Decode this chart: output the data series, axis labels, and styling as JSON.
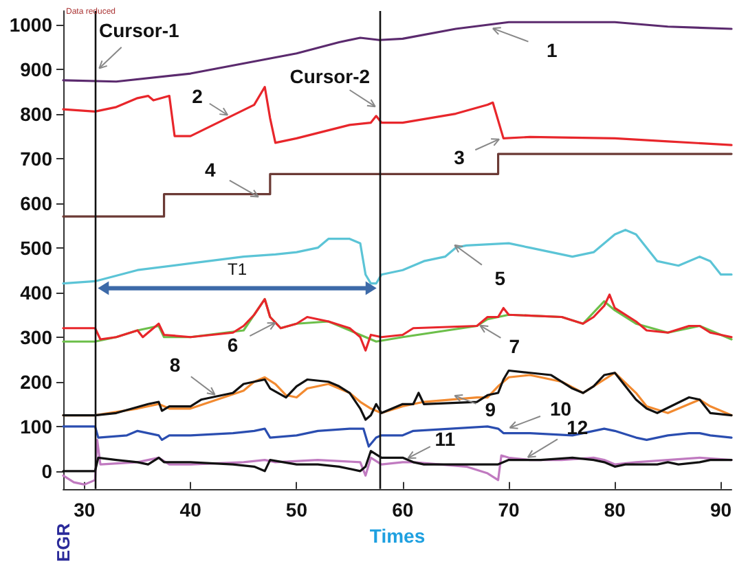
{
  "chart_data": {
    "type": "line",
    "xlabel": "Times",
    "ylabel": "EGR",
    "xlim": [
      28,
      91
    ],
    "ylim": [
      -40,
      1030
    ],
    "xticks": [
      30,
      40,
      50,
      60,
      70,
      80,
      90
    ],
    "yticks": [
      0,
      100,
      200,
      300,
      400,
      500,
      600,
      700,
      800,
      900,
      1000
    ],
    "grid": false,
    "marker": "none",
    "line_style": "solid",
    "series": [
      {
        "color": "#5b2a6e",
        "x": [
          28,
          33,
          40,
          50,
          54,
          56,
          57.8,
          60,
          65,
          70,
          80,
          85,
          91
        ],
        "values": [
          875,
          872,
          890,
          935,
          960,
          970,
          965,
          968,
          990,
          1005,
          1005,
          995,
          990
        ]
      },
      {
        "color": "#e8262b",
        "x": [
          28,
          31,
          33,
          35,
          36,
          36.5,
          38,
          38.5,
          40,
          46,
          47,
          47.5,
          48,
          50,
          55,
          57,
          57.5,
          58,
          60,
          65,
          68,
          68.5,
          69.5,
          72,
          80,
          85,
          91
        ],
        "values": [
          810,
          805,
          815,
          835,
          840,
          830,
          840,
          750,
          750,
          820,
          860,
          790,
          735,
          745,
          775,
          780,
          795,
          780,
          780,
          800,
          820,
          825,
          745,
          748,
          745,
          738,
          730
        ]
      },
      {
        "type": "step",
        "color": "#6b3a35",
        "x": [
          28,
          37.5,
          47.5,
          69,
          91
        ],
        "values": [
          570,
          620,
          665,
          710,
          710
        ]
      },
      {
        "color": "#5bc4d6",
        "x": [
          28,
          31,
          35,
          40,
          45,
          48,
          50,
          52,
          53,
          55,
          56,
          56.5,
          57,
          57.5,
          58,
          60,
          62,
          64,
          65,
          66,
          70,
          72,
          74,
          76,
          78,
          80,
          81,
          82,
          83,
          84,
          86,
          88,
          89,
          90,
          91
        ],
        "values": [
          420,
          425,
          450,
          465,
          480,
          485,
          490,
          500,
          520,
          520,
          510,
          440,
          420,
          420,
          440,
          450,
          470,
          480,
          500,
          505,
          510,
          500,
          490,
          480,
          490,
          530,
          540,
          530,
          500,
          470,
          460,
          480,
          470,
          440,
          440
        ]
      },
      {
        "color": "#6cbf4a",
        "x": [
          28,
          31,
          33,
          35,
          37,
          37.5,
          40,
          45,
          47,
          47.5,
          48.5,
          50,
          53,
          56,
          57.5,
          60,
          67,
          68,
          70,
          75,
          77,
          79,
          80,
          82,
          85,
          88,
          91
        ],
        "values": [
          290,
          290,
          300,
          315,
          325,
          300,
          300,
          315,
          385,
          345,
          320,
          330,
          335,
          305,
          290,
          300,
          325,
          340,
          350,
          345,
          330,
          380,
          360,
          330,
          310,
          325,
          295
        ]
      },
      {
        "color": "#e8262b",
        "x": [
          28,
          31,
          31.5,
          33,
          35,
          35.5,
          37,
          37.5,
          40,
          44,
          45,
          46,
          47,
          47.5,
          48.5,
          50,
          51,
          53,
          55,
          56,
          56.5,
          57,
          58,
          60,
          61,
          67,
          68,
          69,
          69.5,
          70,
          75,
          77,
          78,
          79,
          79.5,
          80,
          82,
          83,
          85,
          87,
          88,
          89,
          91
        ],
        "values": [
          320,
          320,
          295,
          300,
          315,
          300,
          330,
          305,
          300,
          310,
          325,
          350,
          385,
          345,
          320,
          330,
          345,
          335,
          320,
          300,
          270,
          305,
          300,
          305,
          320,
          325,
          345,
          345,
          365,
          350,
          345,
          330,
          345,
          370,
          395,
          365,
          335,
          315,
          310,
          325,
          325,
          310,
          300
        ]
      },
      {
        "color": "#f28a30",
        "x": [
          28,
          31,
          35,
          37,
          38,
          40,
          45,
          46,
          47,
          48,
          49,
          50,
          51,
          53,
          55,
          56,
          57,
          58,
          60,
          62,
          67,
          68,
          69,
          70,
          72,
          75,
          77,
          78,
          80,
          82,
          83,
          85,
          87,
          88,
          89,
          91
        ],
        "values": [
          125,
          125,
          140,
          150,
          140,
          140,
          180,
          200,
          210,
          195,
          170,
          165,
          185,
          195,
          175,
          155,
          140,
          130,
          145,
          155,
          165,
          165,
          190,
          210,
          215,
          200,
          175,
          190,
          220,
          175,
          145,
          130,
          150,
          160,
          145,
          125
        ]
      },
      {
        "color": "#111111",
        "x": [
          28,
          31,
          33,
          36,
          37,
          37.3,
          38,
          40,
          41,
          43,
          44,
          45,
          47,
          47.5,
          49,
          50,
          51,
          53,
          54,
          55,
          56,
          56.5,
          57,
          57.5,
          58,
          60,
          61,
          61.5,
          62,
          67,
          68,
          69,
          69.5,
          70,
          72,
          74,
          75,
          76,
          77,
          78,
          79,
          80,
          81,
          82,
          83,
          84,
          87,
          88,
          89,
          91
        ],
        "values": [
          125,
          125,
          130,
          150,
          155,
          135,
          145,
          145,
          160,
          170,
          175,
          195,
          205,
          185,
          165,
          190,
          205,
          200,
          190,
          175,
          140,
          115,
          125,
          150,
          130,
          150,
          150,
          175,
          150,
          155,
          170,
          175,
          205,
          225,
          220,
          215,
          200,
          185,
          175,
          190,
          215,
          220,
          190,
          160,
          140,
          130,
          165,
          160,
          130,
          125
        ]
      },
      {
        "color": "#2a4db0",
        "x": [
          28,
          31,
          31.3,
          34,
          35,
          36,
          37,
          37.3,
          38,
          40,
          44,
          46,
          47,
          47.5,
          50,
          52,
          55,
          56.3,
          56.8,
          57.5,
          58,
          60,
          61,
          68,
          69,
          69.5,
          72,
          76,
          78,
          79,
          80,
          82,
          83,
          85,
          87,
          88,
          89,
          91
        ],
        "values": [
          100,
          100,
          75,
          80,
          90,
          85,
          80,
          70,
          80,
          80,
          85,
          90,
          95,
          75,
          80,
          90,
          95,
          95,
          55,
          75,
          80,
          80,
          90,
          100,
          95,
          85,
          85,
          80,
          90,
          95,
          90,
          75,
          70,
          80,
          85,
          85,
          80,
          75
        ]
      },
      {
        "color": "#c07ac0",
        "x": [
          28,
          29,
          30,
          31,
          31.2,
          31.5,
          35,
          37,
          38,
          40,
          45,
          47,
          48,
          52,
          56,
          56.5,
          57,
          58,
          60,
          61,
          66,
          68,
          69,
          69.3,
          70,
          72,
          75,
          78,
          79,
          80,
          82,
          85,
          88,
          91
        ],
        "values": [
          -10,
          -25,
          -30,
          -20,
          70,
          15,
          20,
          30,
          15,
          15,
          20,
          25,
          20,
          25,
          20,
          -10,
          30,
          15,
          20,
          20,
          10,
          -5,
          -20,
          35,
          30,
          25,
          25,
          30,
          25,
          15,
          20,
          25,
          30,
          25
        ]
      },
      {
        "color": "#111111",
        "x": [
          28,
          31,
          31.3,
          33,
          35,
          36,
          37,
          37.5,
          40,
          44,
          46,
          47,
          47.5,
          50,
          52,
          54,
          56,
          56.5,
          57,
          58,
          60,
          61,
          62,
          65,
          69,
          70,
          73,
          76,
          78,
          79,
          80,
          81,
          84,
          85,
          86,
          88,
          89,
          91
        ],
        "values": [
          0,
          0,
          30,
          25,
          20,
          15,
          30,
          20,
          20,
          15,
          10,
          0,
          25,
          15,
          15,
          10,
          0,
          10,
          45,
          30,
          30,
          20,
          15,
          15,
          15,
          25,
          25,
          30,
          25,
          20,
          10,
          15,
          15,
          20,
          15,
          20,
          25,
          25
        ]
      }
    ],
    "ref_lines": [
      {
        "axis": "x",
        "value": 31,
        "label": "Cursor-1",
        "color": "#111111"
      },
      {
        "axis": "x",
        "value": 57.8,
        "label": "Cursor-2",
        "color": "#111111"
      }
    ],
    "annotations": [
      "Data reduced",
      {
        "text": "1",
        "x": 68.5,
        "y": 991
      },
      {
        "text": "2",
        "x": 43.5,
        "y": 797
      },
      {
        "text": "3",
        "x": 69.1,
        "y": 743
      },
      {
        "text": "4",
        "x": 46.4,
        "y": 614
      },
      {
        "text": "5",
        "x": 64.9,
        "y": 506
      },
      {
        "text": "6",
        "x": 48,
        "y": 332
      },
      {
        "text": "7",
        "x": 67.3,
        "y": 326
      },
      {
        "text": "8",
        "x": 42.3,
        "y": 171
      },
      {
        "text": "9",
        "x": 64.9,
        "y": 169
      },
      {
        "text": "10",
        "x": 70.1,
        "y": 97
      },
      {
        "text": "11",
        "x": 60.5,
        "y": 29
      },
      {
        "text": "12",
        "x": 71.8,
        "y": 31
      },
      "T1"
    ]
  }
}
